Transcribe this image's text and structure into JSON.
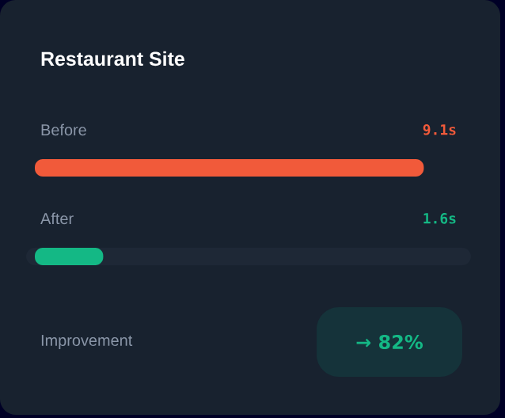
{
  "chart_data": {
    "type": "bar",
    "orientation": "horizontal",
    "title": "Restaurant Site",
    "categories": [
      "Before",
      "After"
    ],
    "values": [
      9.1,
      1.6
    ],
    "value_labels": [
      "9.1s",
      "1.6s"
    ],
    "colors": [
      "#f15a3a",
      "#14b885"
    ],
    "xlim": [
      0,
      10
    ],
    "annotations": [
      "Improvement",
      "→ 82%"
    ]
  }
}
